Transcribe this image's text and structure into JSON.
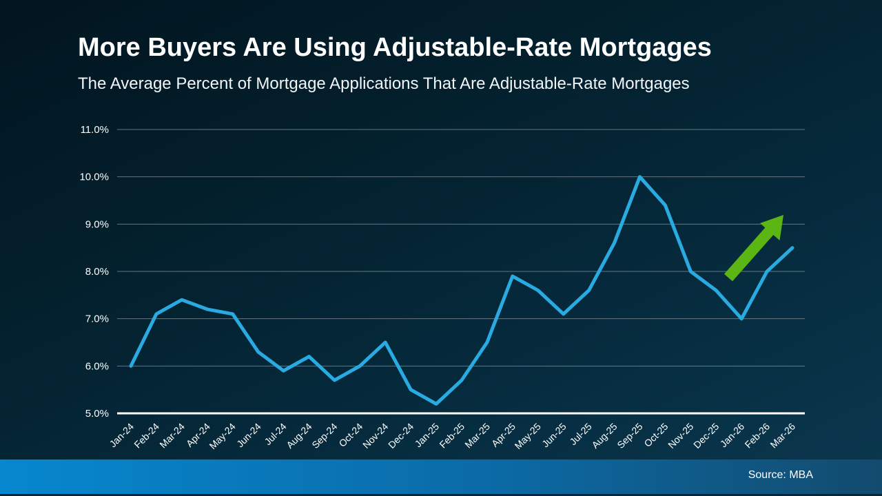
{
  "header": {
    "title": "More Buyers Are Using Adjustable-Rate Mortgages",
    "subtitle": "The Average Percent of Mortgage Applications That Are Adjustable-Rate Mortgages"
  },
  "footer": {
    "source": "Source: MBA"
  },
  "colors": {
    "background_top": "#021520",
    "background_bottom": "#0b3850",
    "line": "#29abe2",
    "arrow_green": "#5bb513",
    "gridline": "#97a3a9",
    "baseline": "#ffffff",
    "text": "#ffffff",
    "footer_left": "#0787cf",
    "footer_right": "#134b6e"
  },
  "chart_data": {
    "type": "line",
    "title": "More Buyers Are Using Adjustable-Rate Mortgages",
    "subtitle": "The Average Percent of Mortgage Applications That Are Adjustable-Rate Mortgages",
    "source": "Source: MBA",
    "xlabel": "",
    "ylabel": "",
    "ylim": [
      5.0,
      11.0
    ],
    "yticks": [
      5.0,
      6.0,
      7.0,
      8.0,
      9.0,
      10.0,
      11.0
    ],
    "ytick_labels": [
      "5.0%",
      "6.0%",
      "7.0%",
      "8.0%",
      "9.0%",
      "10.0%",
      "11.0%"
    ],
    "grid": true,
    "legend": false,
    "categories": [
      "Jan-24",
      "Feb-24",
      "Mar-24",
      "Apr-24",
      "May-24",
      "Jun-24",
      "Jul-24",
      "Aug-24",
      "Sep-24",
      "Oct-24",
      "Nov-24",
      "Dec-24",
      "Jan-25",
      "Feb-25",
      "Mar-25",
      "Apr-25",
      "May-25",
      "Jun-25",
      "Jul-25",
      "Aug-25",
      "Sep-25",
      "Oct-25",
      "Nov-25",
      "Dec-25",
      "Jan-26",
      "Feb-26",
      "Mar-26"
    ],
    "values": [
      6.0,
      7.1,
      7.4,
      7.2,
      7.1,
      6.3,
      5.9,
      6.2,
      5.7,
      6.0,
      6.5,
      5.5,
      5.2,
      5.7,
      6.5,
      7.9,
      7.6,
      7.1,
      7.6,
      8.6,
      10.0,
      9.4,
      8.0,
      7.6,
      7.0,
      8.0,
      8.5
    ],
    "annotations": [
      {
        "type": "arrow",
        "direction": "up-right",
        "color": "#5bb513",
        "meaning": "upward trend highlight near the end of the series"
      }
    ]
  }
}
